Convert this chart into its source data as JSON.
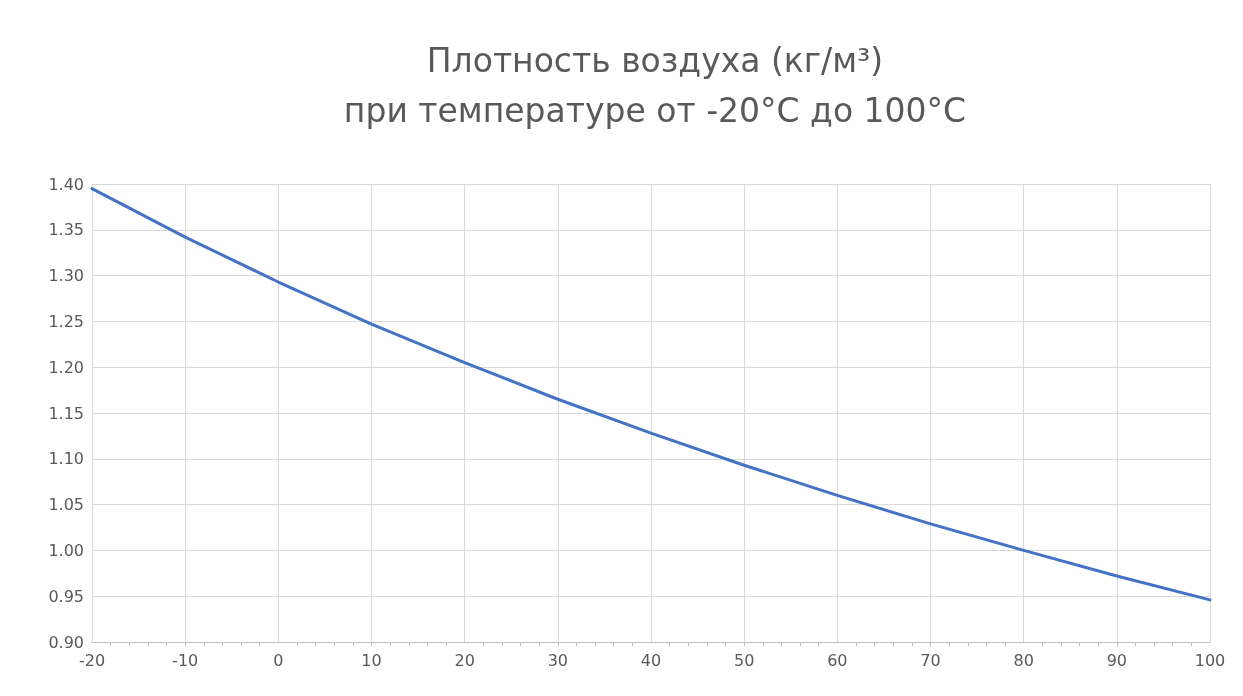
{
  "chart_data": {
    "type": "line",
    "title": "Плотность воздуха (кг/м³)\nпри температуре от -20°C до 100°C",
    "x": [
      -20,
      -10,
      0,
      10,
      20,
      30,
      40,
      50,
      60,
      70,
      80,
      90,
      100
    ],
    "series": [
      {
        "color": "#4472c4",
        "values": [
          1.395,
          1.342,
          1.293,
          1.247,
          1.205,
          1.165,
          1.128,
          1.093,
          1.06,
          1.029,
          1.0,
          0.972,
          0.946
        ]
      }
    ],
    "xlim": [
      -20,
      100
    ],
    "xticks": [
      -20,
      -10,
      0,
      10,
      20,
      30,
      40,
      50,
      60,
      70,
      80,
      90,
      100
    ],
    "ylim": [
      0.9,
      1.4
    ],
    "yticks": [
      {
        "value": 0.9,
        "label": "0.90"
      },
      0.95,
      {
        "value": 1.0,
        "label": "1.00"
      },
      1.05,
      {
        "value": 1.1,
        "label": "1.10"
      },
      1.15,
      {
        "value": 1.2,
        "label": "1.20"
      },
      1.25,
      {
        "value": 1.3,
        "label": "1.30"
      },
      1.35,
      {
        "value": 1.4,
        "label": "1.40"
      }
    ],
    "grid": true,
    "marker": "none",
    "line_style": "solid"
  }
}
